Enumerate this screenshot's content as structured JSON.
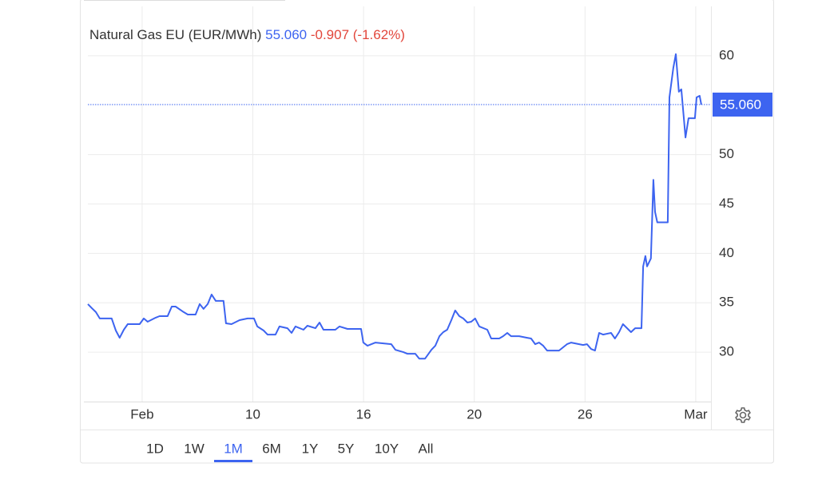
{
  "chart_data": {
    "type": "line",
    "title": "Natural Gas EU (EUR/MWh)",
    "current_price": {
      "value": 55.06,
      "label": "55.060"
    },
    "change": "-0.907 (-1.62%)",
    "color": "#3d64f0",
    "x": [
      -1.96,
      -1.82,
      -1.67,
      -1.53,
      -1.1,
      -0.95,
      -0.81,
      -0.66,
      -0.52,
      -0.09,
      0.06,
      0.2,
      0.49,
      0.63,
      0.92,
      1.07,
      1.21,
      1.5,
      1.65,
      1.93,
      2.08,
      2.22,
      2.37,
      2.51,
      2.66,
      2.94,
      3.03,
      3.23,
      3.52,
      3.81,
      4.04,
      4.16,
      4.39,
      4.53,
      4.82,
      4.96,
      5.25,
      5.4,
      5.54,
      5.83,
      5.97,
      6.26,
      6.41,
      6.55,
      6.98,
      7.13,
      7.42,
      7.91,
      7.99,
      8.14,
      8.43,
      9.0,
      9.15,
      9.44,
      9.58,
      9.87,
      10.01,
      10.22,
      10.45,
      10.59,
      10.74,
      10.88,
      11.02,
      11.17,
      11.31,
      11.46,
      11.6,
      11.75,
      11.89,
      12.03,
      12.18,
      12.47,
      12.61,
      12.9,
      13.04,
      13.19,
      13.33,
      13.62,
      13.91,
      14.05,
      14.2,
      14.34,
      14.49,
      14.63,
      15.06,
      15.35,
      15.5,
      15.93,
      16.07,
      16.22,
      16.36,
      16.51,
      16.65,
      16.94,
      17.08,
      17.23,
      17.37,
      17.52,
      17.66,
      17.81,
      18.04,
      18.1,
      18.18,
      18.24,
      18.38,
      18.47,
      18.53,
      18.61,
      18.82,
      18.99,
      19.05,
      19.19,
      19.28,
      19.39,
      19.48,
      19.63,
      19.74,
      19.97,
      20.03,
      20.14,
      20.2
    ],
    "values": [
      34.87,
      34.46,
      34.06,
      33.41,
      33.41,
      32.19,
      31.46,
      32.27,
      32.84,
      32.84,
      33.41,
      33.08,
      33.49,
      33.65,
      33.65,
      34.62,
      34.62,
      34.06,
      33.81,
      33.81,
      34.87,
      34.38,
      34.87,
      35.84,
      35.19,
      35.19,
      32.92,
      32.84,
      33.24,
      33.41,
      33.41,
      32.6,
      32.19,
      31.78,
      31.78,
      32.6,
      32.43,
      31.95,
      32.6,
      32.27,
      32.68,
      32.43,
      33.0,
      32.27,
      32.27,
      32.6,
      32.35,
      32.35,
      30.97,
      30.65,
      30.97,
      30.81,
      30.24,
      30.0,
      29.84,
      29.84,
      29.35,
      29.35,
      30.24,
      30.65,
      31.62,
      32.03,
      32.27,
      33.24,
      34.22,
      33.65,
      33.41,
      33.0,
      33.08,
      33.41,
      32.6,
      32.27,
      31.38,
      31.38,
      31.62,
      31.95,
      31.62,
      31.62,
      31.46,
      31.38,
      30.81,
      30.97,
      30.65,
      30.16,
      30.16,
      30.81,
      30.97,
      30.73,
      30.81,
      30.32,
      30.16,
      31.95,
      31.78,
      31.95,
      31.38,
      32.03,
      32.84,
      32.43,
      32.03,
      32.43,
      32.43,
      38.68,
      39.73,
      38.68,
      39.49,
      47.44,
      44.19,
      43.14,
      43.14,
      43.14,
      55.79,
      58.79,
      60.17,
      56.36,
      56.6,
      51.73,
      53.68,
      53.68,
      55.79,
      55.95,
      55.06
    ],
    "xlim": [
      -1.96,
      20.55
    ],
    "xticks": [
      {
        "value": 0,
        "label": "Feb"
      },
      10,
      16,
      20,
      26,
      {
        "value": 20,
        "label": "Mar"
      }
    ],
    "ylim": [
      25,
      65
    ],
    "yticks": [
      30,
      35,
      40,
      45,
      50,
      60
    ],
    "grid": true,
    "ranges": [
      "1D",
      "1W",
      "1M",
      "6M",
      "1Y",
      "5Y",
      "10Y",
      "All"
    ],
    "selected_range": 2
  }
}
